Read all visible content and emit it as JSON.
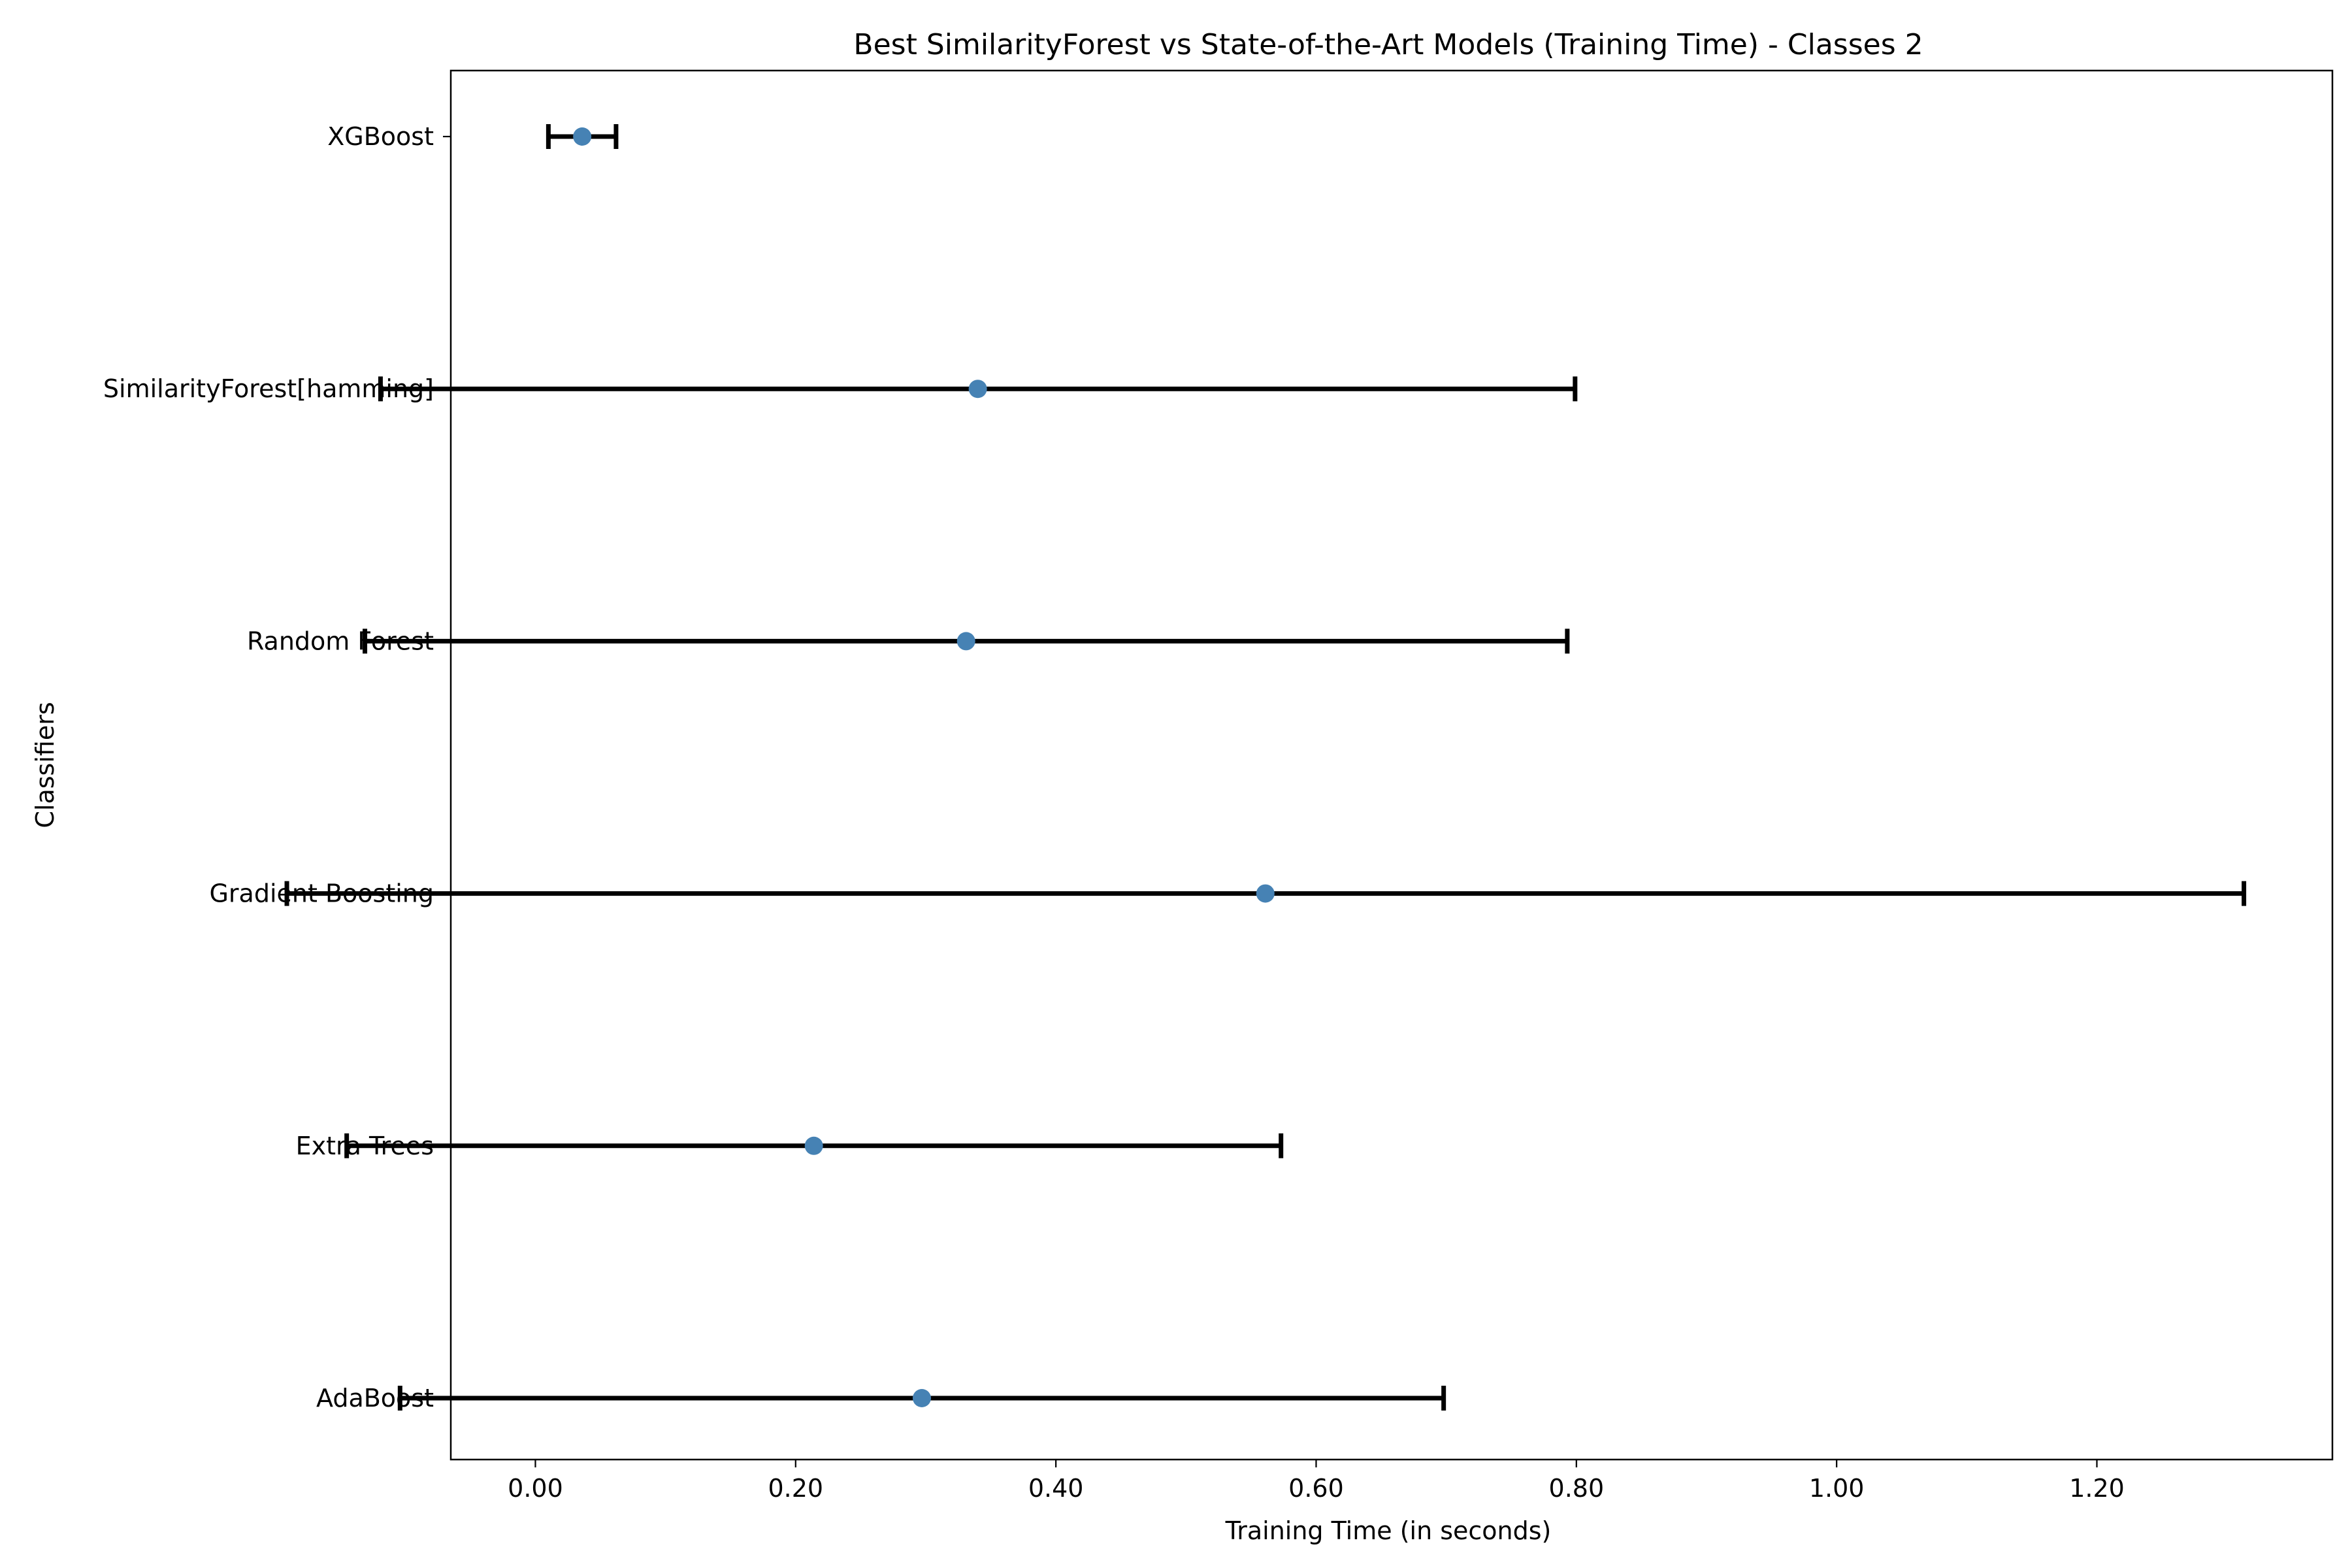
{
  "chart_data": {
    "type": "errorbar",
    "orientation": "horizontal",
    "title": "Best SimilarityForest vs State-of-the-Art Models (Training Time) - Classes 2",
    "xlabel": "Training Time (in seconds)",
    "ylabel": "Classifiers",
    "xlim": [
      -0.065,
      1.381
    ],
    "xticks": [
      0.0,
      0.2,
      0.4,
      0.6,
      0.8,
      1.0,
      1.2
    ],
    "xtick_labels": [
      "0.00",
      "0.20",
      "0.40",
      "0.60",
      "0.80",
      "1.00",
      "1.20"
    ],
    "categories": [
      "AdaBoost",
      "Extra Trees",
      "Gradient Boosting",
      "Random Forest",
      "SimilarityForest[hamming]",
      "XGBoost"
    ],
    "values": [
      0.297,
      0.214,
      0.561,
      0.331,
      0.34,
      0.036
    ],
    "errors": [
      0.401,
      0.359,
      0.752,
      0.462,
      0.459,
      0.026
    ],
    "grid": false,
    "legend": "none",
    "colors": {
      "marker": "#4682b4",
      "errorbar": "#000000",
      "axes": "#000000"
    }
  }
}
